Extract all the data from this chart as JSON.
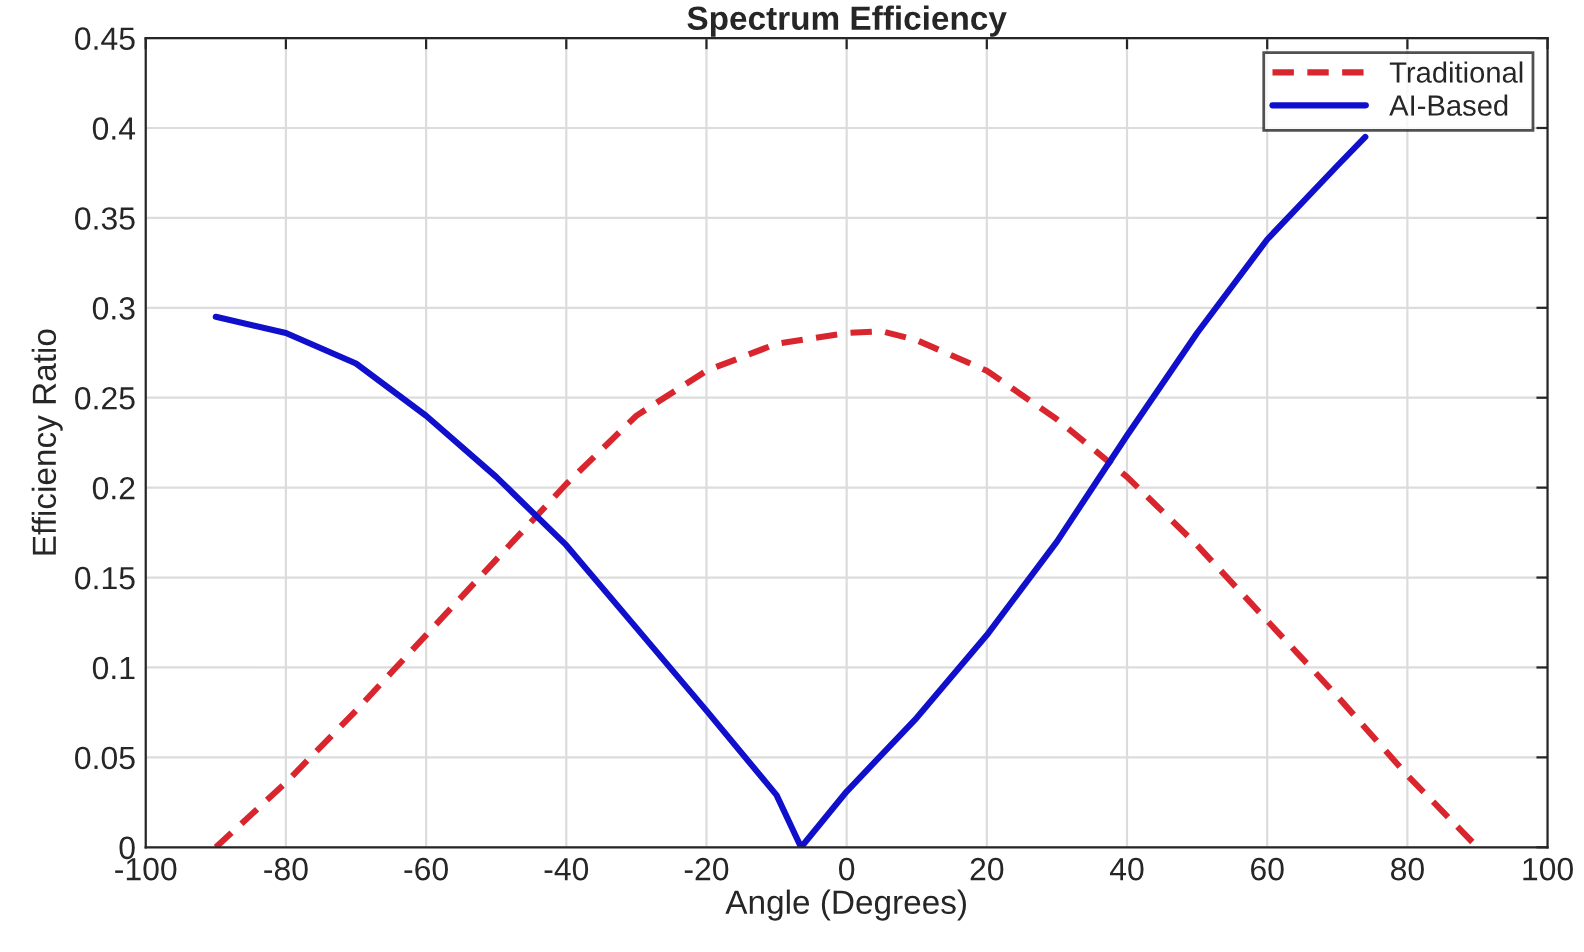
{
  "chart_data": {
    "type": "line",
    "title": "Spectrum Efficiency",
    "xlabel": "Angle (Degrees)",
    "ylabel": "Efficiency Ratio",
    "xlim": [
      -100,
      100
    ],
    "xticks": [
      -100,
      -80,
      -60,
      -40,
      -20,
      0,
      20,
      40,
      60,
      80,
      100
    ],
    "ylim": [
      0,
      0.45
    ],
    "yticks": [
      0,
      0.05,
      0.1,
      0.15,
      0.2,
      0.25,
      0.3,
      0.35,
      0.4,
      0.45
    ],
    "grid": true,
    "legend": "top right",
    "series": [
      {
        "name": "Traditional",
        "color": "#d9262e",
        "line_style": "dashed",
        "x": [
          -90,
          -80,
          -70,
          -60,
          -50,
          -40,
          -30,
          -20,
          -10,
          0,
          5,
          10,
          20,
          30,
          40,
          50,
          60,
          70,
          80,
          90
        ],
        "values": [
          0,
          0.036,
          0.076,
          0.118,
          0.16,
          0.202,
          0.24,
          0.265,
          0.28,
          0.286,
          0.287,
          0.282,
          0.265,
          0.238,
          0.206,
          0.168,
          0.126,
          0.084,
          0.04,
          0
        ]
      },
      {
        "name": "AI-Based",
        "color": "#1010cc",
        "line_style": "solid",
        "x": [
          -90,
          -80,
          -70,
          -60,
          -50,
          -40,
          -30,
          -20,
          -10,
          -6.5,
          0,
          10,
          20,
          30,
          40,
          50,
          60,
          70,
          74
        ],
        "values": [
          0.295,
          0.286,
          0.269,
          0.24,
          0.206,
          0.168,
          0.122,
          0.076,
          0.029,
          0,
          0.031,
          0.072,
          0.118,
          0.17,
          0.229,
          0.286,
          0.338,
          0.379,
          0.395
        ]
      }
    ]
  }
}
